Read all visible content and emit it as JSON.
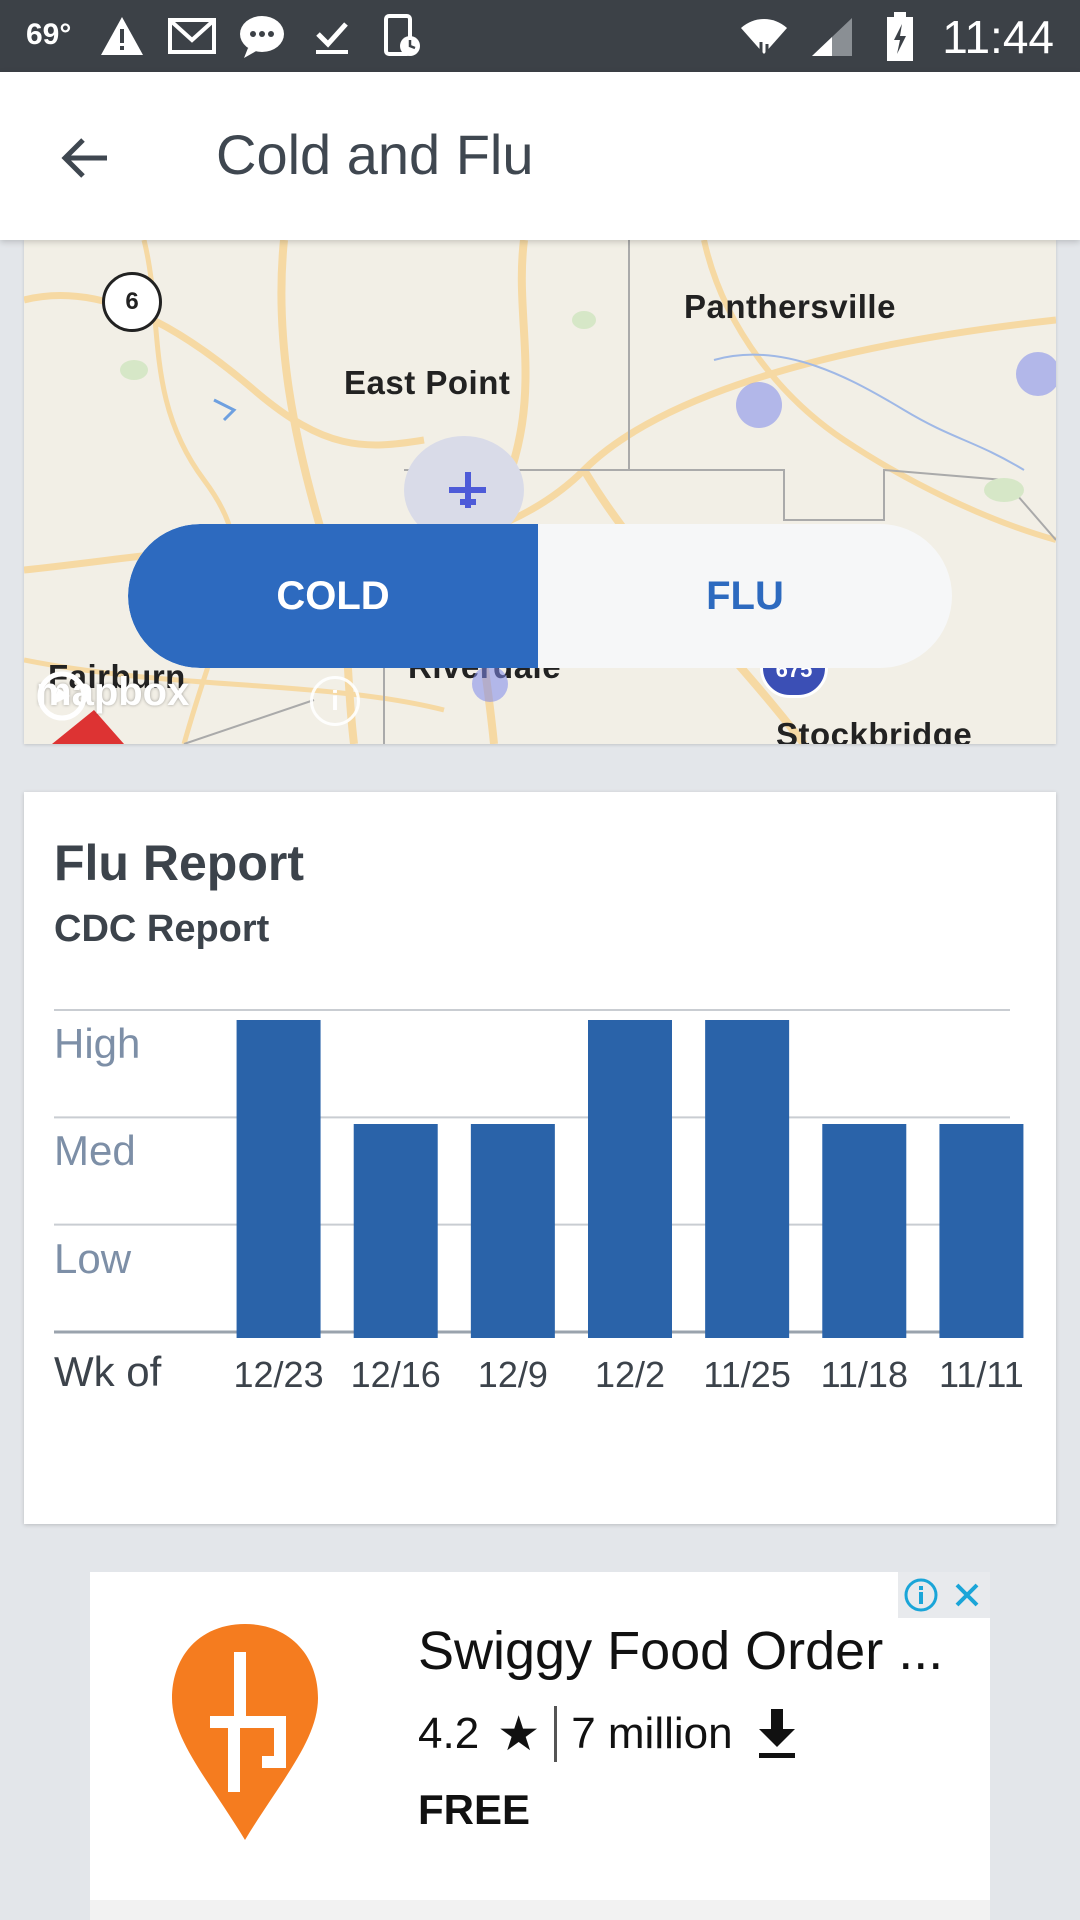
{
  "status_bar": {
    "temperature": "69°",
    "time": "11:44",
    "left_icons": [
      "alert-icon",
      "gmail-icon",
      "messages-icon",
      "check-icon",
      "phone-clock-icon"
    ],
    "right_icons": [
      "wifi-icon",
      "signal-icon",
      "battery-charging-icon"
    ]
  },
  "app_bar": {
    "back_icon": "arrow-left-icon",
    "title": "Cold and Flu"
  },
  "map": {
    "labels": {
      "panthersville": "Panthersville",
      "east_point": "East Point",
      "fairburn": "Fairburn",
      "riverdale": "Riverdale",
      "stockbridge": "Stockbridge"
    },
    "route_badge": "6",
    "interstate": "675",
    "attribution": "mapbox",
    "info_icon": "info-icon"
  },
  "toggle": {
    "cold_label": "COLD",
    "flu_label": "FLU",
    "selected": "COLD",
    "colors": {
      "active": "#2d6abf",
      "inactive_bg": "#f6f7f8"
    }
  },
  "report_card": {
    "title": "Flu Report",
    "subtitle": "CDC Report",
    "x_title": "Wk of"
  },
  "chart_data": {
    "type": "bar",
    "categories": [
      "12/23",
      "12/16",
      "12/9",
      "12/2",
      "11/25",
      "11/18",
      "11/11"
    ],
    "values": [
      3,
      2,
      2,
      3,
      3,
      2,
      2
    ],
    "y_tick_labels": [
      "Low",
      "Med",
      "High"
    ],
    "ylim": [
      0,
      3
    ],
    "grid": true,
    "bar_color": "#2a63a9"
  },
  "ad": {
    "title": "Swiggy Food Order ...",
    "rating": "4.2",
    "downloads": "7 million",
    "price": "FREE",
    "brand_color": "#f57c1f",
    "adchoices_icon": "adchoices-info-icon",
    "close_icon": "close-icon"
  }
}
